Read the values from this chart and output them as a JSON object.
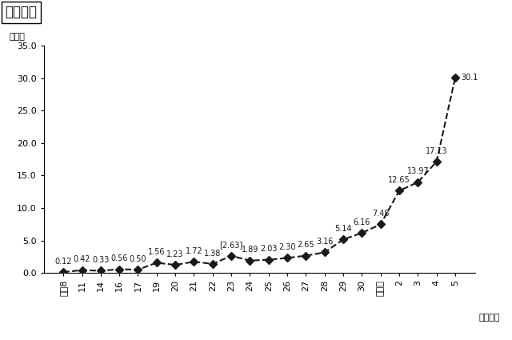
{
  "title": "（男性）",
  "ylabel": "（％）",
  "xlabel": "（年度）",
  "x_labels": [
    "平成8",
    "11",
    "14",
    "16",
    "17",
    "19",
    "20",
    "21",
    "22",
    "23",
    "24",
    "25",
    "26",
    "27",
    "28",
    "29",
    "30",
    "令和元",
    "2",
    "3",
    "4",
    "5"
  ],
  "values": [
    0.12,
    0.42,
    0.33,
    0.56,
    0.5,
    1.56,
    1.23,
    1.72,
    1.38,
    2.63,
    1.89,
    2.03,
    2.3,
    2.65,
    3.16,
    5.14,
    6.16,
    7.48,
    12.65,
    13.97,
    17.13,
    30.1
  ],
  "annotations": [
    "0.12",
    "0.42",
    "0.33",
    "0.56",
    "0.50",
    "1.56",
    "1.23",
    "1.72",
    "1.38",
    "[2.63]",
    "1.89",
    "2.03",
    "2.30",
    "2.65",
    "3.16",
    "5.14",
    "6.16",
    "7.48",
    "12.65",
    "13.97",
    "17.13",
    "30.1"
  ],
  "annot_offsets_x": [
    0,
    0,
    0,
    0,
    0,
    0,
    0,
    0,
    0,
    0,
    0,
    0,
    0,
    0,
    0,
    0,
    0,
    0,
    0,
    0,
    0,
    5
  ],
  "annot_offsets_y": [
    6,
    6,
    6,
    6,
    6,
    6,
    6,
    6,
    6,
    6,
    6,
    6,
    6,
    6,
    6,
    6,
    6,
    6,
    6,
    6,
    6,
    0
  ],
  "annot_ha": [
    "center",
    "center",
    "center",
    "center",
    "center",
    "center",
    "center",
    "center",
    "center",
    "center",
    "center",
    "center",
    "center",
    "center",
    "center",
    "center",
    "center",
    "center",
    "center",
    "center",
    "center",
    "left"
  ],
  "annot_va": [
    "bottom",
    "bottom",
    "bottom",
    "bottom",
    "bottom",
    "bottom",
    "bottom",
    "bottom",
    "bottom",
    "bottom",
    "bottom",
    "bottom",
    "bottom",
    "bottom",
    "bottom",
    "bottom",
    "bottom",
    "bottom",
    "bottom",
    "bottom",
    "bottom",
    "center"
  ],
  "ylim": [
    0,
    35.0
  ],
  "yticks": [
    0.0,
    5.0,
    10.0,
    15.0,
    20.0,
    25.0,
    30.0,
    35.0
  ],
  "line_color": "#1a1a1a",
  "markersize": 5,
  "linewidth": 1.5,
  "background_color": "#ffffff",
  "title_fontsize": 12,
  "tick_fontsize": 8,
  "annot_fontsize": 7,
  "ylabel_fontsize": 8,
  "xlabel_fontsize": 8
}
